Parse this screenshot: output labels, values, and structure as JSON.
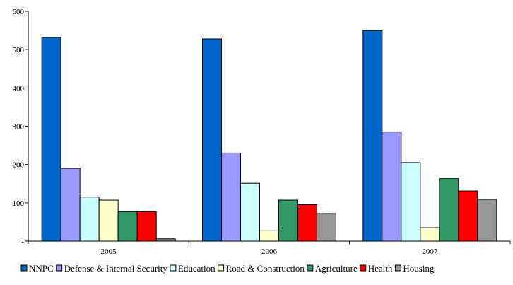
{
  "chart_data": {
    "type": "bar",
    "title": "",
    "xlabel": "",
    "ylabel": "",
    "categories": [
      "2005",
      "2006",
      "2007"
    ],
    "ylim": [
      0,
      600
    ],
    "yticks": [
      0,
      100,
      200,
      300,
      400,
      500,
      600
    ],
    "ytick_labels": [
      "-",
      "100",
      "200",
      "300",
      "400",
      "500",
      "600"
    ],
    "grid": false,
    "legend_position": "bottom",
    "series": [
      {
        "name": "NNPC",
        "color": "#0066cc",
        "values": [
          532,
          528,
          550
        ]
      },
      {
        "name": "Defense & Internal Security",
        "color": "#9999ff",
        "values": [
          190,
          230,
          285
        ]
      },
      {
        "name": "Education",
        "color": "#ccffff",
        "values": [
          115,
          151,
          205
        ]
      },
      {
        "name": "Road & Construction",
        "color": "#ffffcc",
        "values": [
          107,
          27,
          35
        ]
      },
      {
        "name": "Agriculture",
        "color": "#339966",
        "values": [
          77,
          107,
          164
        ]
      },
      {
        "name": "Health",
        "color": "#ff0000",
        "values": [
          77,
          95,
          131
        ]
      },
      {
        "name": "Housing",
        "color": "#969696",
        "values": [
          6,
          72,
          109
        ]
      }
    ]
  }
}
